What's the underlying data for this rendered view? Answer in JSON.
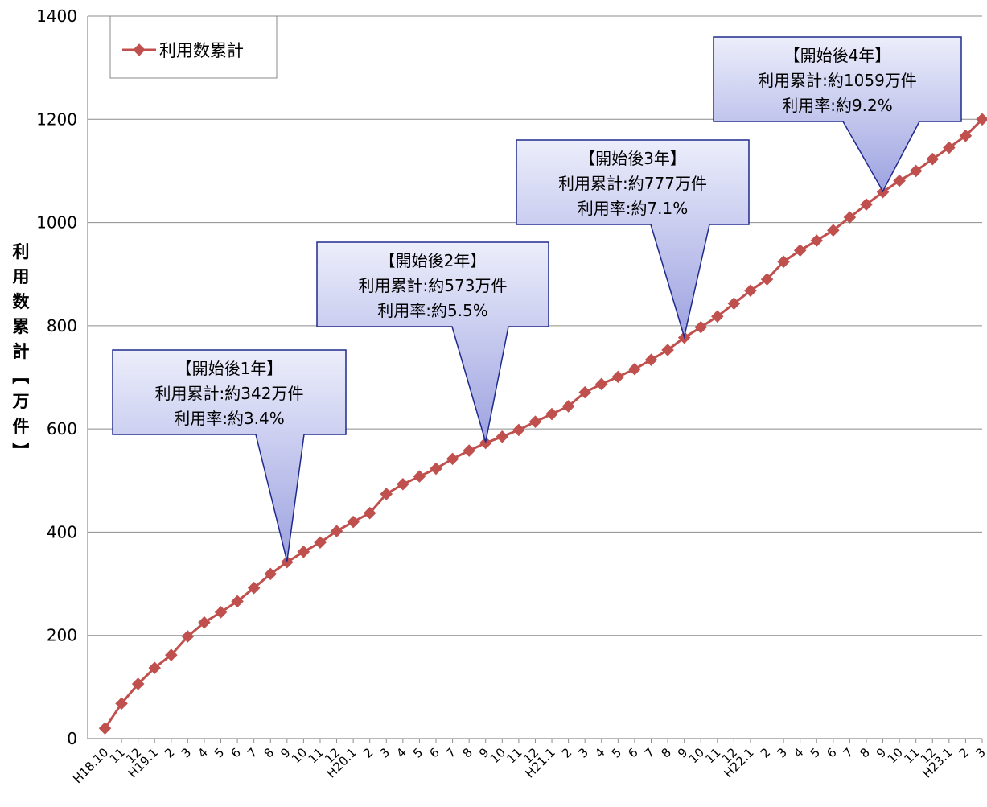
{
  "chart_data": {
    "type": "line",
    "ylabel": "利用数累計【万件】",
    "ylim": [
      0,
      1400
    ],
    "yticks": [
      0,
      200,
      400,
      600,
      800,
      1000,
      1200,
      1400
    ],
    "grid": true,
    "legend_position": "top-left",
    "categories": [
      "H18.10",
      "11",
      "12",
      "H19.1",
      "2",
      "3",
      "4",
      "5",
      "6",
      "7",
      "8",
      "9",
      "10",
      "11",
      "12",
      "H20.1",
      "2",
      "3",
      "4",
      "5",
      "6",
      "7",
      "8",
      "9",
      "10",
      "11",
      "12",
      "H21.1",
      "2",
      "3",
      "4",
      "5",
      "6",
      "7",
      "8",
      "9",
      "10",
      "11",
      "12",
      "H22.1",
      "2",
      "3",
      "4",
      "5",
      "6",
      "7",
      "8",
      "9",
      "10",
      "11",
      "12",
      "H23.1",
      "2",
      "3"
    ],
    "series": [
      {
        "name": "利用数累計",
        "color": "#c0504d",
        "values": [
          20,
          68,
          106,
          137,
          162,
          198,
          225,
          245,
          266,
          292,
          319,
          342,
          362,
          380,
          402,
          420,
          437,
          474,
          493,
          508,
          523,
          542,
          558,
          573,
          585,
          598,
          614,
          629,
          644,
          671,
          687,
          701,
          716,
          734,
          753,
          777,
          797,
          818,
          843,
          868,
          890,
          924,
          946,
          965,
          985,
          1010,
          1035,
          1059,
          1081,
          1100,
          1123,
          1145,
          1168,
          1200
        ]
      }
    ],
    "annotations": [
      {
        "lines": [
          "【開始後1年】",
          "利用累計:約342万件",
          "利用率:約3.4%"
        ],
        "target_index": 11
      },
      {
        "lines": [
          "【開始後2年】",
          "利用累計:約573万件",
          "利用率:約5.5%"
        ],
        "target_index": 23
      },
      {
        "lines": [
          "【開始後3年】",
          "利用累計:約777万件",
          "利用率:約7.1%"
        ],
        "target_index": 35
      },
      {
        "lines": [
          "【開始後4年】",
          "利用累計:約1059万件",
          "利用率:約9.2%"
        ],
        "target_index": 47
      }
    ]
  }
}
